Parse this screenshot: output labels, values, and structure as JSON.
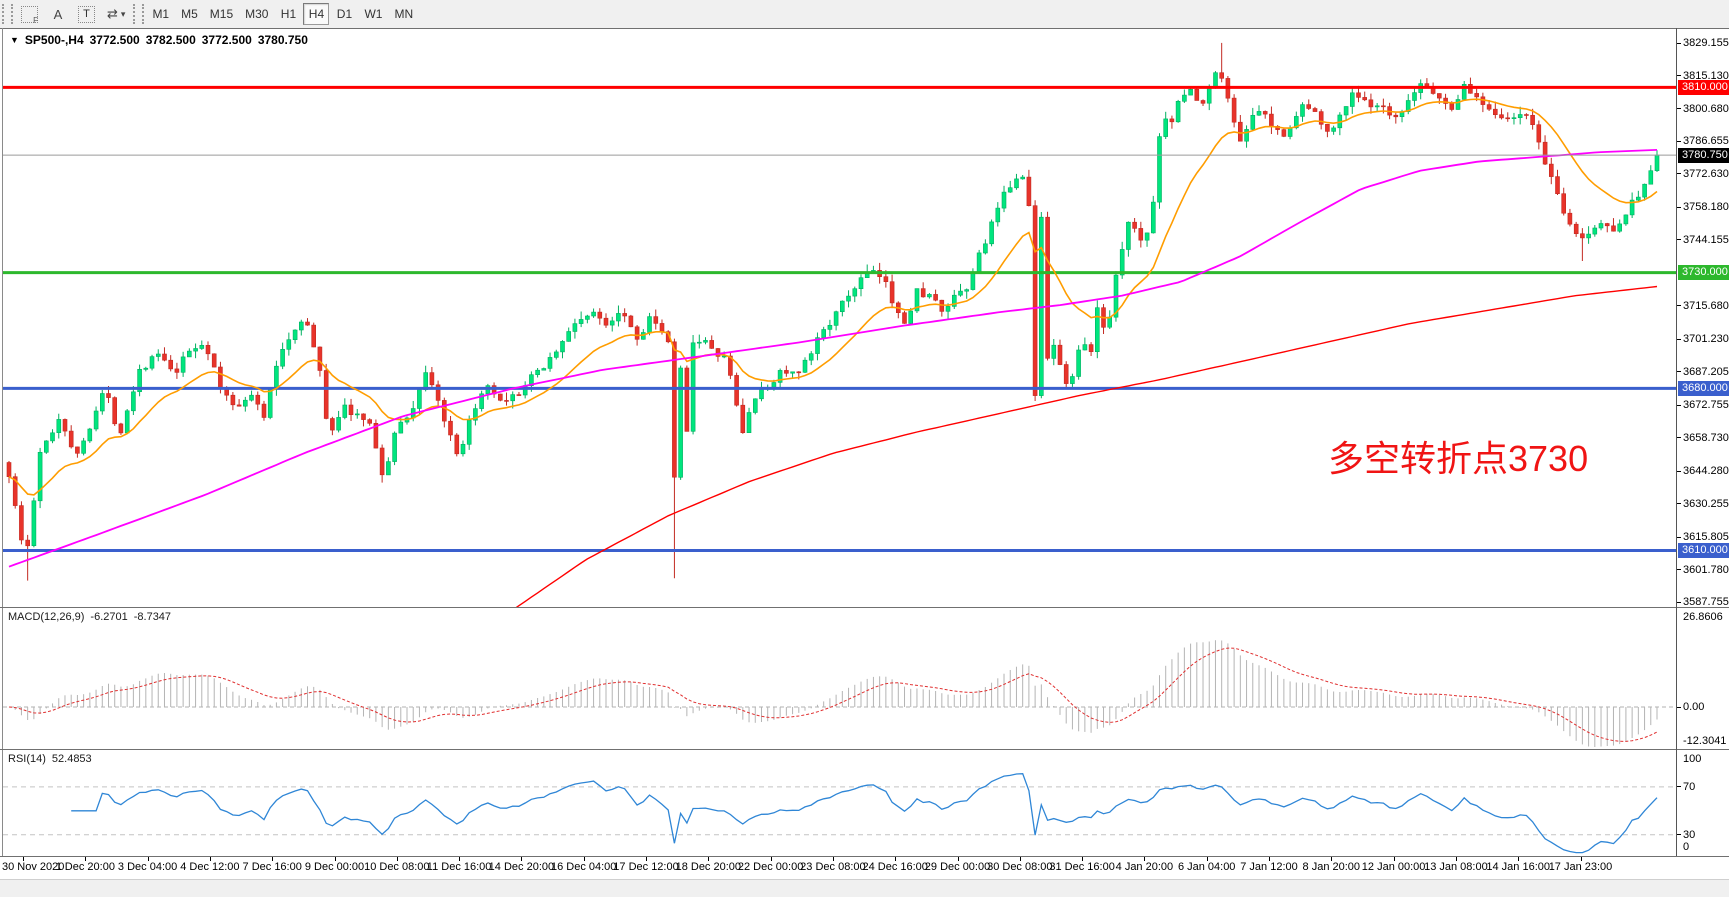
{
  "toolbar": {
    "tools": [
      {
        "name": "chart-grid-tool",
        "glyph": "F"
      },
      {
        "name": "text-label-tool",
        "glyph": "A"
      },
      {
        "name": "text-box-tool",
        "glyph": "T"
      },
      {
        "name": "object-arrows-tool",
        "glyph": "⇄",
        "caret": "▾"
      }
    ],
    "timeframes": [
      "M1",
      "M5",
      "M15",
      "M30",
      "H1",
      "H4",
      "D1",
      "W1",
      "MN"
    ],
    "active_timeframe": "H4"
  },
  "chart": {
    "dropdown_icon": "▼",
    "title_symbol": "SP500-,H4",
    "open": "3772.500",
    "high": "3782.500",
    "low": "3772.500",
    "close": "3780.750",
    "annotation": "多空转折点3730"
  },
  "price_axis": {
    "ticks": [
      "3829.155",
      "3815.130",
      "3800.680",
      "3786.655",
      "3772.630",
      "3758.180",
      "3744.155",
      "3715.680",
      "3701.230",
      "3687.205",
      "3672.755",
      "3658.730",
      "3644.280",
      "3630.255",
      "3615.805",
      "3601.780",
      "3587.755"
    ],
    "badges": [
      {
        "value": "3810.000",
        "price": 3810.0,
        "bg": "#ff0000"
      },
      {
        "value": "3780.750",
        "price": 3780.75,
        "bg": "#000000"
      },
      {
        "value": "3730.000",
        "price": 3730.0,
        "bg": "#2db82d"
      },
      {
        "value": "3680.000",
        "price": 3680.0,
        "bg": "#3a5fcd"
      },
      {
        "value": "3610.000",
        "price": 3610.0,
        "bg": "#3a5fcd"
      }
    ]
  },
  "macd": {
    "label": "MACD(12,26,9)",
    "value_main": "-6.2701",
    "value_signal": "-8.7347",
    "axis": {
      "max": "26.8606",
      "zero": "0.00",
      "min": "-12.3041"
    }
  },
  "rsi": {
    "label": "RSI(14)",
    "value": "52.4853",
    "axis": {
      "max": "100",
      "upper": "70",
      "lower": "30",
      "min": "0"
    },
    "levels": [
      70,
      30
    ]
  },
  "time_axis": {
    "labels": [
      "30 Nov 2020",
      "1 Dec 20:00",
      "3 Dec 04:00",
      "4 Dec 12:00",
      "7 Dec 16:00",
      "9 Dec 00:00",
      "10 Dec 08:00",
      "11 Dec 16:00",
      "14 Dec 20:00",
      "16 Dec 04:00",
      "17 Dec 12:00",
      "18 Dec 20:00",
      "22 Dec 00:00",
      "23 Dec 08:00",
      "24 Dec 16:00",
      "29 Dec 00:00",
      "30 Dec 08:00",
      "31 Dec 16:00",
      "4 Jan 20:00",
      "6 Jan 04:00",
      "7 Jan 12:00",
      "8 Jan 20:00",
      "12 Jan 00:00",
      "13 Jan 08:00",
      "14 Jan 16:00",
      "17 Jan 23:00"
    ]
  },
  "colors": {
    "bull": "#00e57e",
    "bull_edge": "#00b060",
    "bear": "#e8332a",
    "bear_edge": "#c22a22",
    "ma_fast": "#ff9d00",
    "ma_mid": "#ff00ff",
    "ma_slow": "#ff0000",
    "level_red": "#ff0000",
    "level_green": "#2db82d",
    "level_blue": "#3a5fcd",
    "current_line": "#9a9a9a",
    "macd_hist": "#b4b4b4",
    "macd_signal": "#e03030",
    "rsi_line": "#2f86d6",
    "dashed_level": "#c4c4c4",
    "annotation": "#f01414"
  },
  "chart_data": {
    "type": "candlestick",
    "symbol": "SP500-",
    "timeframe": "H4",
    "bars": 266,
    "last_ohlc": {
      "open": 3772.5,
      "high": 3782.5,
      "low": 3772.5,
      "close": 3780.75
    },
    "price_range_visible": [
      3587.755,
      3829.155
    ],
    "horizontal_levels": [
      {
        "price": 3810.0,
        "color": "#ff0000",
        "width": 3
      },
      {
        "price": 3730.0,
        "color": "#2db82d",
        "width": 3
      },
      {
        "price": 3680.0,
        "color": "#3a5fcd",
        "width": 3
      },
      {
        "price": 3610.0,
        "color": "#3a5fcd",
        "width": 3
      }
    ],
    "current_price": 3780.75,
    "price_path": [
      [
        0,
        3643
      ],
      [
        0.004,
        3628
      ],
      [
        0.01,
        3605
      ],
      [
        0.019,
        3652
      ],
      [
        0.031,
        3668
      ],
      [
        0.041,
        3650
      ],
      [
        0.058,
        3680
      ],
      [
        0.067,
        3660
      ],
      [
        0.079,
        3688
      ],
      [
        0.091,
        3695
      ],
      [
        0.1,
        3685
      ],
      [
        0.109,
        3696
      ],
      [
        0.119,
        3700
      ],
      [
        0.128,
        3680
      ],
      [
        0.137,
        3672
      ],
      [
        0.146,
        3678
      ],
      [
        0.155,
        3668
      ],
      [
        0.164,
        3695
      ],
      [
        0.173,
        3705
      ],
      [
        0.179,
        3712
      ],
      [
        0.188,
        3690
      ],
      [
        0.194,
        3660
      ],
      [
        0.203,
        3672
      ],
      [
        0.212,
        3668
      ],
      [
        0.221,
        3662
      ],
      [
        0.227,
        3640
      ],
      [
        0.236,
        3665
      ],
      [
        0.245,
        3670
      ],
      [
        0.252,
        3688
      ],
      [
        0.258,
        3680
      ],
      [
        0.267,
        3660
      ],
      [
        0.273,
        3648
      ],
      [
        0.282,
        3672
      ],
      [
        0.291,
        3680
      ],
      [
        0.3,
        3672
      ],
      [
        0.309,
        3678
      ],
      [
        0.318,
        3685
      ],
      [
        0.327,
        3692
      ],
      [
        0.336,
        3700
      ],
      [
        0.345,
        3710
      ],
      [
        0.354,
        3712
      ],
      [
        0.363,
        3708
      ],
      [
        0.372,
        3715
      ],
      [
        0.382,
        3700
      ],
      [
        0.388,
        3712
      ],
      [
        0.394,
        3705
      ],
      [
        0.4,
        3700
      ],
      [
        0.4038,
        3640
      ],
      [
        0.4075,
        3688
      ],
      [
        0.411,
        3660
      ],
      [
        0.415,
        3700
      ],
      [
        0.421,
        3702
      ],
      [
        0.427,
        3695
      ],
      [
        0.433,
        3695
      ],
      [
        0.439,
        3682
      ],
      [
        0.445,
        3660
      ],
      [
        0.451,
        3675
      ],
      [
        0.46,
        3680
      ],
      [
        0.469,
        3688
      ],
      [
        0.478,
        3685
      ],
      [
        0.487,
        3695
      ],
      [
        0.493,
        3705
      ],
      [
        0.502,
        3712
      ],
      [
        0.511,
        3722
      ],
      [
        0.521,
        3730
      ],
      [
        0.53,
        3728
      ],
      [
        0.536,
        3718
      ],
      [
        0.545,
        3708
      ],
      [
        0.551,
        3722
      ],
      [
        0.56,
        3720
      ],
      [
        0.566,
        3712
      ],
      [
        0.572,
        3718
      ],
      [
        0.581,
        3722
      ],
      [
        0.587,
        3735
      ],
      [
        0.593,
        3745
      ],
      [
        0.599,
        3755
      ],
      [
        0.605,
        3765
      ],
      [
        0.611,
        3772
      ],
      [
        0.6185,
        3770
      ],
      [
        0.622,
        3658
      ],
      [
        0.6258,
        3768
      ],
      [
        0.6295,
        3692
      ],
      [
        0.634,
        3700
      ],
      [
        0.638,
        3688
      ],
      [
        0.644,
        3680
      ],
      [
        0.65,
        3700
      ],
      [
        0.657,
        3695
      ],
      [
        0.661,
        3718
      ],
      [
        0.666,
        3700
      ],
      [
        0.67,
        3725
      ],
      [
        0.675,
        3740
      ],
      [
        0.681,
        3755
      ],
      [
        0.687,
        3742
      ],
      [
        0.693,
        3752
      ],
      [
        0.7,
        3800
      ],
      [
        0.705,
        3795
      ],
      [
        0.711,
        3805
      ],
      [
        0.717,
        3810
      ],
      [
        0.723,
        3800
      ],
      [
        0.729,
        3812
      ],
      [
        0.735,
        3818
      ],
      [
        0.741,
        3800
      ],
      [
        0.747,
        3788
      ],
      [
        0.753,
        3795
      ],
      [
        0.759,
        3800
      ],
      [
        0.767,
        3792
      ],
      [
        0.773,
        3790
      ],
      [
        0.779,
        3795
      ],
      [
        0.785,
        3802
      ],
      [
        0.791,
        3800
      ],
      [
        0.797,
        3795
      ],
      [
        0.803,
        3790
      ],
      [
        0.809,
        3800
      ],
      [
        0.815,
        3808
      ],
      [
        0.821,
        3805
      ],
      [
        0.827,
        3800
      ],
      [
        0.833,
        3802
      ],
      [
        0.839,
        3795
      ],
      [
        0.847,
        3800
      ],
      [
        0.856,
        3812
      ],
      [
        0.865,
        3808
      ],
      [
        0.874,
        3800
      ],
      [
        0.883,
        3810
      ],
      [
        0.892,
        3805
      ],
      [
        0.901,
        3800
      ],
      [
        0.911,
        3795
      ],
      [
        0.92,
        3800
      ],
      [
        0.929,
        3785
      ],
      [
        0.938,
        3765
      ],
      [
        0.947,
        3750
      ],
      [
        0.956,
        3744
      ],
      [
        0.965,
        3752
      ],
      [
        0.972,
        3748
      ],
      [
        0.98,
        3755
      ],
      [
        0.988,
        3763
      ],
      [
        0.994,
        3770
      ],
      [
        1,
        3780.75
      ]
    ],
    "wick_events": [
      {
        "f": 0.01,
        "low": 3597
      },
      {
        "f": 0.4038,
        "low": 3598
      },
      {
        "f": 0.735,
        "high": 3829.2
      },
      {
        "f": 0.956,
        "low": 3735
      }
    ],
    "moving_averages": [
      {
        "name": "fast",
        "style": "ema",
        "period": 16,
        "color": "#ff9d00"
      },
      {
        "name": "mid",
        "style": "anchors",
        "color": "#ff00ff",
        "anchors": [
          [
            0,
            3603
          ],
          [
            0.058,
            3618
          ],
          [
            0.119,
            3634
          ],
          [
            0.179,
            3652
          ],
          [
            0.239,
            3668
          ],
          [
            0.306,
            3680
          ],
          [
            0.36,
            3688
          ],
          [
            0.421,
            3694
          ],
          [
            0.481,
            3700
          ],
          [
            0.542,
            3707
          ],
          [
            0.602,
            3713
          ],
          [
            0.638,
            3716
          ],
          [
            0.675,
            3720
          ],
          [
            0.711,
            3726
          ],
          [
            0.747,
            3737
          ],
          [
            0.784,
            3752
          ],
          [
            0.82,
            3766
          ],
          [
            0.856,
            3774
          ],
          [
            0.892,
            3778
          ],
          [
            0.929,
            3780
          ],
          [
            0.965,
            3782
          ],
          [
            1,
            3783
          ]
        ]
      },
      {
        "name": "slow",
        "style": "anchors",
        "color": "#ff0000",
        "anchors": [
          [
            0.305,
            3584
          ],
          [
            0.35,
            3606
          ],
          [
            0.4,
            3625
          ],
          [
            0.45,
            3640
          ],
          [
            0.5,
            3652
          ],
          [
            0.55,
            3661
          ],
          [
            0.6,
            3669
          ],
          [
            0.65,
            3677
          ],
          [
            0.7,
            3684
          ],
          [
            0.75,
            3692
          ],
          [
            0.8,
            3700
          ],
          [
            0.85,
            3708
          ],
          [
            0.9,
            3714
          ],
          [
            0.95,
            3720
          ],
          [
            1,
            3724
          ]
        ]
      }
    ],
    "indicators": [
      {
        "name": "MACD",
        "params": [
          12,
          26,
          9
        ],
        "current": [
          -6.2701,
          -8.7347
        ],
        "display_range": [
          -12.3041,
          26.8606
        ]
      },
      {
        "name": "RSI",
        "params": [
          14
        ],
        "current": 52.4853,
        "levels": [
          30,
          70
        ]
      }
    ]
  }
}
